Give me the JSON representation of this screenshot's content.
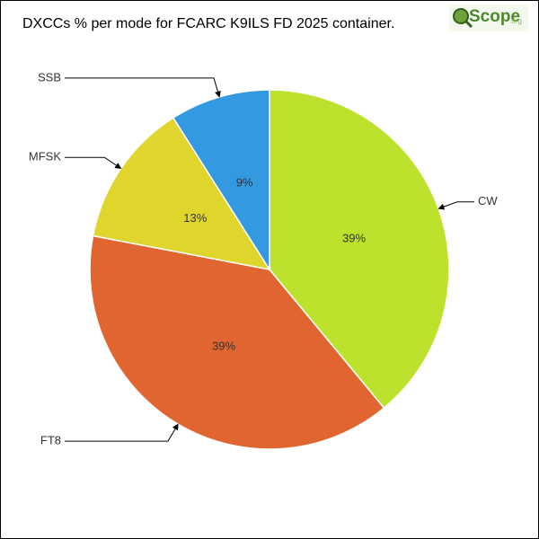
{
  "chart_data": {
    "type": "pie",
    "title": "DXCCs % per mode for FCARC K9ILS FD 2025 container.",
    "categories": [
      "CW",
      "FT8",
      "MFSK",
      "SSB"
    ],
    "values": [
      39,
      39,
      13,
      9
    ],
    "value_labels": [
      "39%",
      "39%",
      "13%",
      "9%"
    ],
    "colors": [
      "#bde22d",
      "#e06530",
      "#e0d52c",
      "#3399e0"
    ]
  },
  "logo": {
    "text": "Scope",
    "suffix": ".org"
  }
}
